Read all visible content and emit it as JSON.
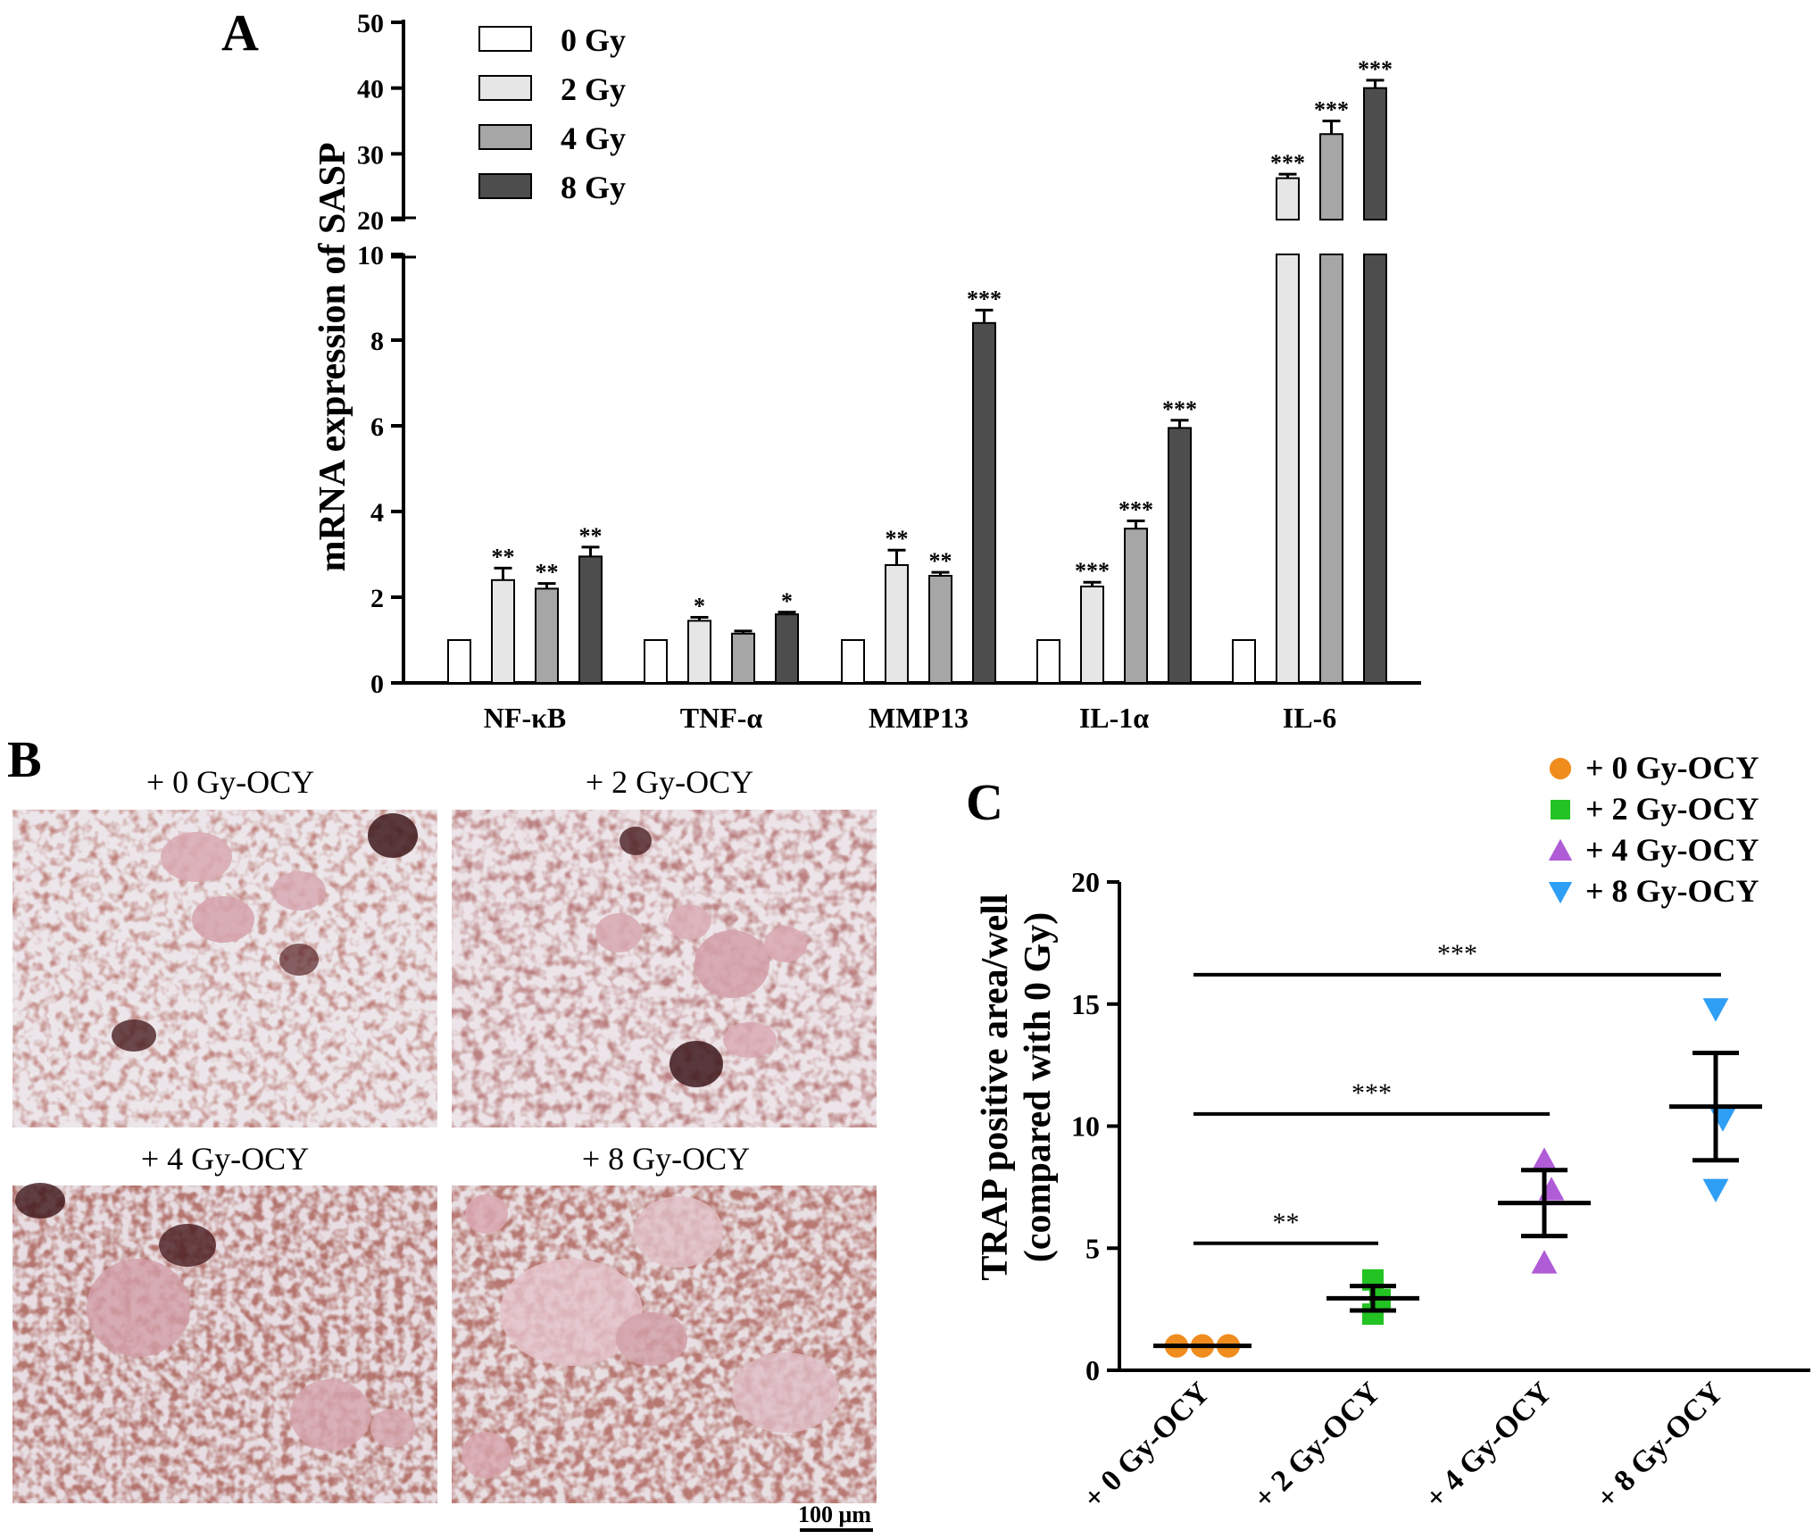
{
  "panel_labels": {
    "a": "A",
    "b": "B",
    "c": "C"
  },
  "chart_data": [
    {
      "panel": "A",
      "type": "bar",
      "ylabel": "mRNA expression of SASP",
      "categories": [
        "NF-κB",
        "TNF-α",
        "MMP13",
        "IL-1α",
        "IL-6"
      ],
      "y_axis_break": {
        "lower": [
          0,
          10
        ],
        "upper": [
          20,
          50
        ]
      },
      "lower_ticks": [
        "0",
        "2",
        "4",
        "6",
        "8",
        "10"
      ],
      "upper_ticks": [
        "20",
        "30",
        "40",
        "50"
      ],
      "legend_position": "top",
      "series": [
        {
          "name": "0 Gy",
          "color": "#ffffff",
          "values": [
            1,
            1,
            1,
            1,
            1
          ],
          "errors": [
            0,
            0,
            0,
            0,
            0
          ],
          "sig": [
            "",
            "",
            "",
            "",
            ""
          ]
        },
        {
          "name": "2 Gy",
          "color": "#e6e6e6",
          "values": [
            2.4,
            1.45,
            2.75,
            2.25,
            26.3
          ],
          "errors": [
            0.28,
            0.08,
            0.35,
            0.1,
            0.6
          ],
          "sig": [
            "**",
            "*",
            "**",
            "***",
            "***"
          ]
        },
        {
          "name": "4 Gy",
          "color": "#a6a6a6",
          "values": [
            2.2,
            1.15,
            2.5,
            3.6,
            33.0
          ],
          "errors": [
            0.12,
            0.06,
            0.08,
            0.18,
            2.0
          ],
          "sig": [
            "**",
            "",
            "**",
            "***",
            "***"
          ]
        },
        {
          "name": "8 Gy",
          "color": "#4d4d4d",
          "values": [
            2.95,
            1.6,
            8.4,
            5.95,
            40.0
          ],
          "errors": [
            0.22,
            0.05,
            0.3,
            0.18,
            1.2
          ],
          "sig": [
            "**",
            "*",
            "***",
            "***",
            "***"
          ]
        }
      ]
    },
    {
      "panel": "C",
      "type": "scatter",
      "ylabel": "TRAP positive area/well",
      "ylabel2": "(compared with 0 Gy)",
      "categories": [
        "+ 0 Gy-OCY",
        "+ 2 Gy-OCY",
        "+ 4 Gy-OCY",
        "+ 8 Gy-OCY"
      ],
      "ylim": [
        0,
        20
      ],
      "yticks": [
        "0",
        "5",
        "10",
        "15",
        "20"
      ],
      "legend_position": "top-right",
      "series": [
        {
          "name": "+ 0 Gy-OCY",
          "marker": "circle",
          "color": "#f08c1e",
          "points": [
            1.0,
            1.0,
            1.0
          ],
          "mean": 1.0,
          "sd_low": 1.0,
          "sd_high": 1.0
        },
        {
          "name": "+ 2 Gy-OCY",
          "marker": "square",
          "color": "#22c322",
          "points": [
            3.7,
            2.9,
            2.3
          ],
          "mean": 2.95,
          "sd_low": 2.45,
          "sd_high": 3.45
        },
        {
          "name": "+ 4 Gy-OCY",
          "marker": "triangle-up",
          "color": "#b05cd6",
          "points": [
            8.6,
            7.4,
            4.4
          ],
          "mean": 6.85,
          "sd_low": 5.5,
          "sd_high": 8.2
        },
        {
          "name": "+ 8 Gy-OCY",
          "marker": "triangle-down",
          "color": "#2f9ef5",
          "points": [
            14.8,
            10.3,
            7.4
          ],
          "mean": 10.8,
          "sd_low": 8.6,
          "sd_high": 13.0
        }
      ],
      "comparisons": [
        {
          "from": 0,
          "to": 1,
          "y": 5.2,
          "label": "**"
        },
        {
          "from": 0,
          "to": 2,
          "y": 10.5,
          "label": "***"
        },
        {
          "from": 0,
          "to": 3,
          "y": 16.2,
          "label": "***"
        }
      ]
    }
  ],
  "micrographs": [
    {
      "label": "+ 0 Gy-OCY"
    },
    {
      "label": "+ 2 Gy-OCY"
    },
    {
      "label": "+ 4 Gy-OCY"
    },
    {
      "label": "+ 8 Gy-OCY"
    }
  ],
  "scale_bar": "100 μm"
}
